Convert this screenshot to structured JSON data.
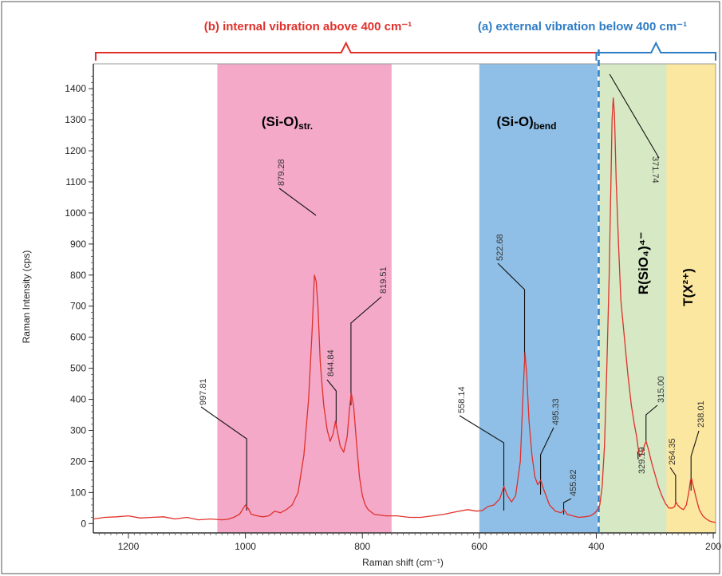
{
  "chart_data": {
    "type": "line",
    "title": "",
    "xlabel": "Raman shift (cm⁻¹)",
    "ylabel": "Raman Intensity (cps)",
    "xlim": [
      1260,
      196
    ],
    "ylim": [
      -30,
      1480
    ],
    "x_reversed": true,
    "grid": false,
    "x_ticks": [
      1200,
      1000,
      800,
      600,
      400,
      200
    ],
    "y_ticks": [
      0,
      100,
      200,
      300,
      400,
      500,
      600,
      700,
      800,
      900,
      1000,
      1100,
      1200,
      1300,
      1400
    ],
    "series": [
      {
        "color": "#e0302a",
        "points": [
          [
            1260,
            15
          ],
          [
            1240,
            20
          ],
          [
            1220,
            22
          ],
          [
            1200,
            25
          ],
          [
            1180,
            18
          ],
          [
            1160,
            20
          ],
          [
            1140,
            22
          ],
          [
            1120,
            15
          ],
          [
            1100,
            20
          ],
          [
            1080,
            12
          ],
          [
            1060,
            15
          ],
          [
            1040,
            12
          ],
          [
            1030,
            14
          ],
          [
            1020,
            20
          ],
          [
            1010,
            30
          ],
          [
            1005,
            45
          ],
          [
            1000,
            60
          ],
          [
            995,
            48
          ],
          [
            990,
            30
          ],
          [
            980,
            25
          ],
          [
            970,
            22
          ],
          [
            960,
            25
          ],
          [
            950,
            40
          ],
          [
            940,
            35
          ],
          [
            930,
            45
          ],
          [
            920,
            60
          ],
          [
            910,
            100
          ],
          [
            900,
            220
          ],
          [
            892,
            400
          ],
          [
            886,
            620
          ],
          [
            882,
            800
          ],
          [
            879,
            780
          ],
          [
            876,
            700
          ],
          [
            872,
            520
          ],
          [
            866,
            380
          ],
          [
            860,
            300
          ],
          [
            855,
            265
          ],
          [
            850,
            290
          ],
          [
            846,
            330
          ],
          [
            843,
            300
          ],
          [
            838,
            250
          ],
          [
            832,
            230
          ],
          [
            826,
            280
          ],
          [
            822,
            370
          ],
          [
            819,
            420
          ],
          [
            815,
            380
          ],
          [
            810,
            260
          ],
          [
            805,
            150
          ],
          [
            800,
            90
          ],
          [
            795,
            60
          ],
          [
            790,
            45
          ],
          [
            780,
            30
          ],
          [
            760,
            25
          ],
          [
            740,
            25
          ],
          [
            720,
            20
          ],
          [
            700,
            20
          ],
          [
            680,
            25
          ],
          [
            660,
            30
          ],
          [
            640,
            38
          ],
          [
            620,
            45
          ],
          [
            605,
            40
          ],
          [
            595,
            42
          ],
          [
            585,
            55
          ],
          [
            575,
            60
          ],
          [
            565,
            80
          ],
          [
            558,
            120
          ],
          [
            552,
            90
          ],
          [
            545,
            70
          ],
          [
            538,
            90
          ],
          [
            530,
            200
          ],
          [
            525,
            430
          ],
          [
            522,
            550
          ],
          [
            519,
            480
          ],
          [
            515,
            330
          ],
          [
            510,
            220
          ],
          [
            505,
            150
          ],
          [
            500,
            125
          ],
          [
            495,
            140
          ],
          [
            490,
            110
          ],
          [
            480,
            60
          ],
          [
            470,
            40
          ],
          [
            460,
            35
          ],
          [
            455,
            45
          ],
          [
            450,
            30
          ],
          [
            440,
            25
          ],
          [
            430,
            20
          ],
          [
            420,
            22
          ],
          [
            410,
            25
          ],
          [
            402,
            35
          ],
          [
            398,
            45
          ],
          [
            394,
            60
          ],
          [
            390,
            120
          ],
          [
            386,
            250
          ],
          [
            382,
            500
          ],
          [
            378,
            800
          ],
          [
            375,
            1100
          ],
          [
            373,
            1300
          ],
          [
            371,
            1370
          ],
          [
            369,
            1320
          ],
          [
            366,
            1100
          ],
          [
            362,
            900
          ],
          [
            358,
            720
          ],
          [
            352,
            600
          ],
          [
            346,
            480
          ],
          [
            340,
            380
          ],
          [
            335,
            320
          ],
          [
            331,
            280
          ],
          [
            329,
            250
          ],
          [
            326,
            215
          ],
          [
            322,
            225
          ],
          [
            318,
            250
          ],
          [
            315,
            265
          ],
          [
            311,
            240
          ],
          [
            306,
            200
          ],
          [
            300,
            160
          ],
          [
            294,
            120
          ],
          [
            288,
            90
          ],
          [
            282,
            65
          ],
          [
            276,
            50
          ],
          [
            270,
            50
          ],
          [
            266,
            55
          ],
          [
            264,
            70
          ],
          [
            261,
            60
          ],
          [
            256,
            50
          ],
          [
            251,
            45
          ],
          [
            246,
            60
          ],
          [
            242,
            100
          ],
          [
            239,
            140
          ],
          [
            237,
            145
          ],
          [
            234,
            120
          ],
          [
            229,
            80
          ],
          [
            224,
            45
          ],
          [
            218,
            25
          ],
          [
            212,
            15
          ],
          [
            206,
            8
          ],
          [
            200,
            5
          ],
          [
            196,
            4
          ]
        ]
      }
    ],
    "peak_labels": [
      {
        "x": 997.81,
        "text": "997.81"
      },
      {
        "x": 879.28,
        "text": "879.28"
      },
      {
        "x": 844.84,
        "text": "844.84"
      },
      {
        "x": 819.51,
        "text": "819.51"
      },
      {
        "x": 558.14,
        "text": "558.14"
      },
      {
        "x": 522.68,
        "text": "522.68"
      },
      {
        "x": 495.33,
        "text": "495.33"
      },
      {
        "x": 455.82,
        "text": "455.82"
      },
      {
        "x": 371.74,
        "text": "371.74"
      },
      {
        "x": 329.19,
        "text": "329.19"
      },
      {
        "x": 315.0,
        "text": "315.00"
      },
      {
        "x": 264.35,
        "text": "264.35"
      },
      {
        "x": 238.01,
        "text": "238.01"
      }
    ],
    "bands": [
      {
        "from": 1048,
        "to": 750,
        "color": "#f4a9c9",
        "label": "(Si-O)",
        "label_sub": "str."
      },
      {
        "from": 600,
        "to": 398,
        "color": "#8fbfe6",
        "label": "(Si-O)",
        "label_sub": "bend"
      },
      {
        "from": 395,
        "to": 280,
        "color": "#d6e8c4",
        "label": "R(SiO₄)⁴⁻"
      },
      {
        "from": 280,
        "to": 196,
        "color": "#fbe7a0",
        "label": "T(X²⁺)"
      }
    ],
    "brackets": [
      {
        "from": 1256,
        "to": 400,
        "color": "#e0302a",
        "label": "(b) internal vibration above 400 cm⁻¹"
      },
      {
        "from": 400,
        "to": 196,
        "color": "#2e7cc4",
        "label": "(a) external vibration below 400 cm⁻¹"
      }
    ],
    "divider_x": 400
  }
}
